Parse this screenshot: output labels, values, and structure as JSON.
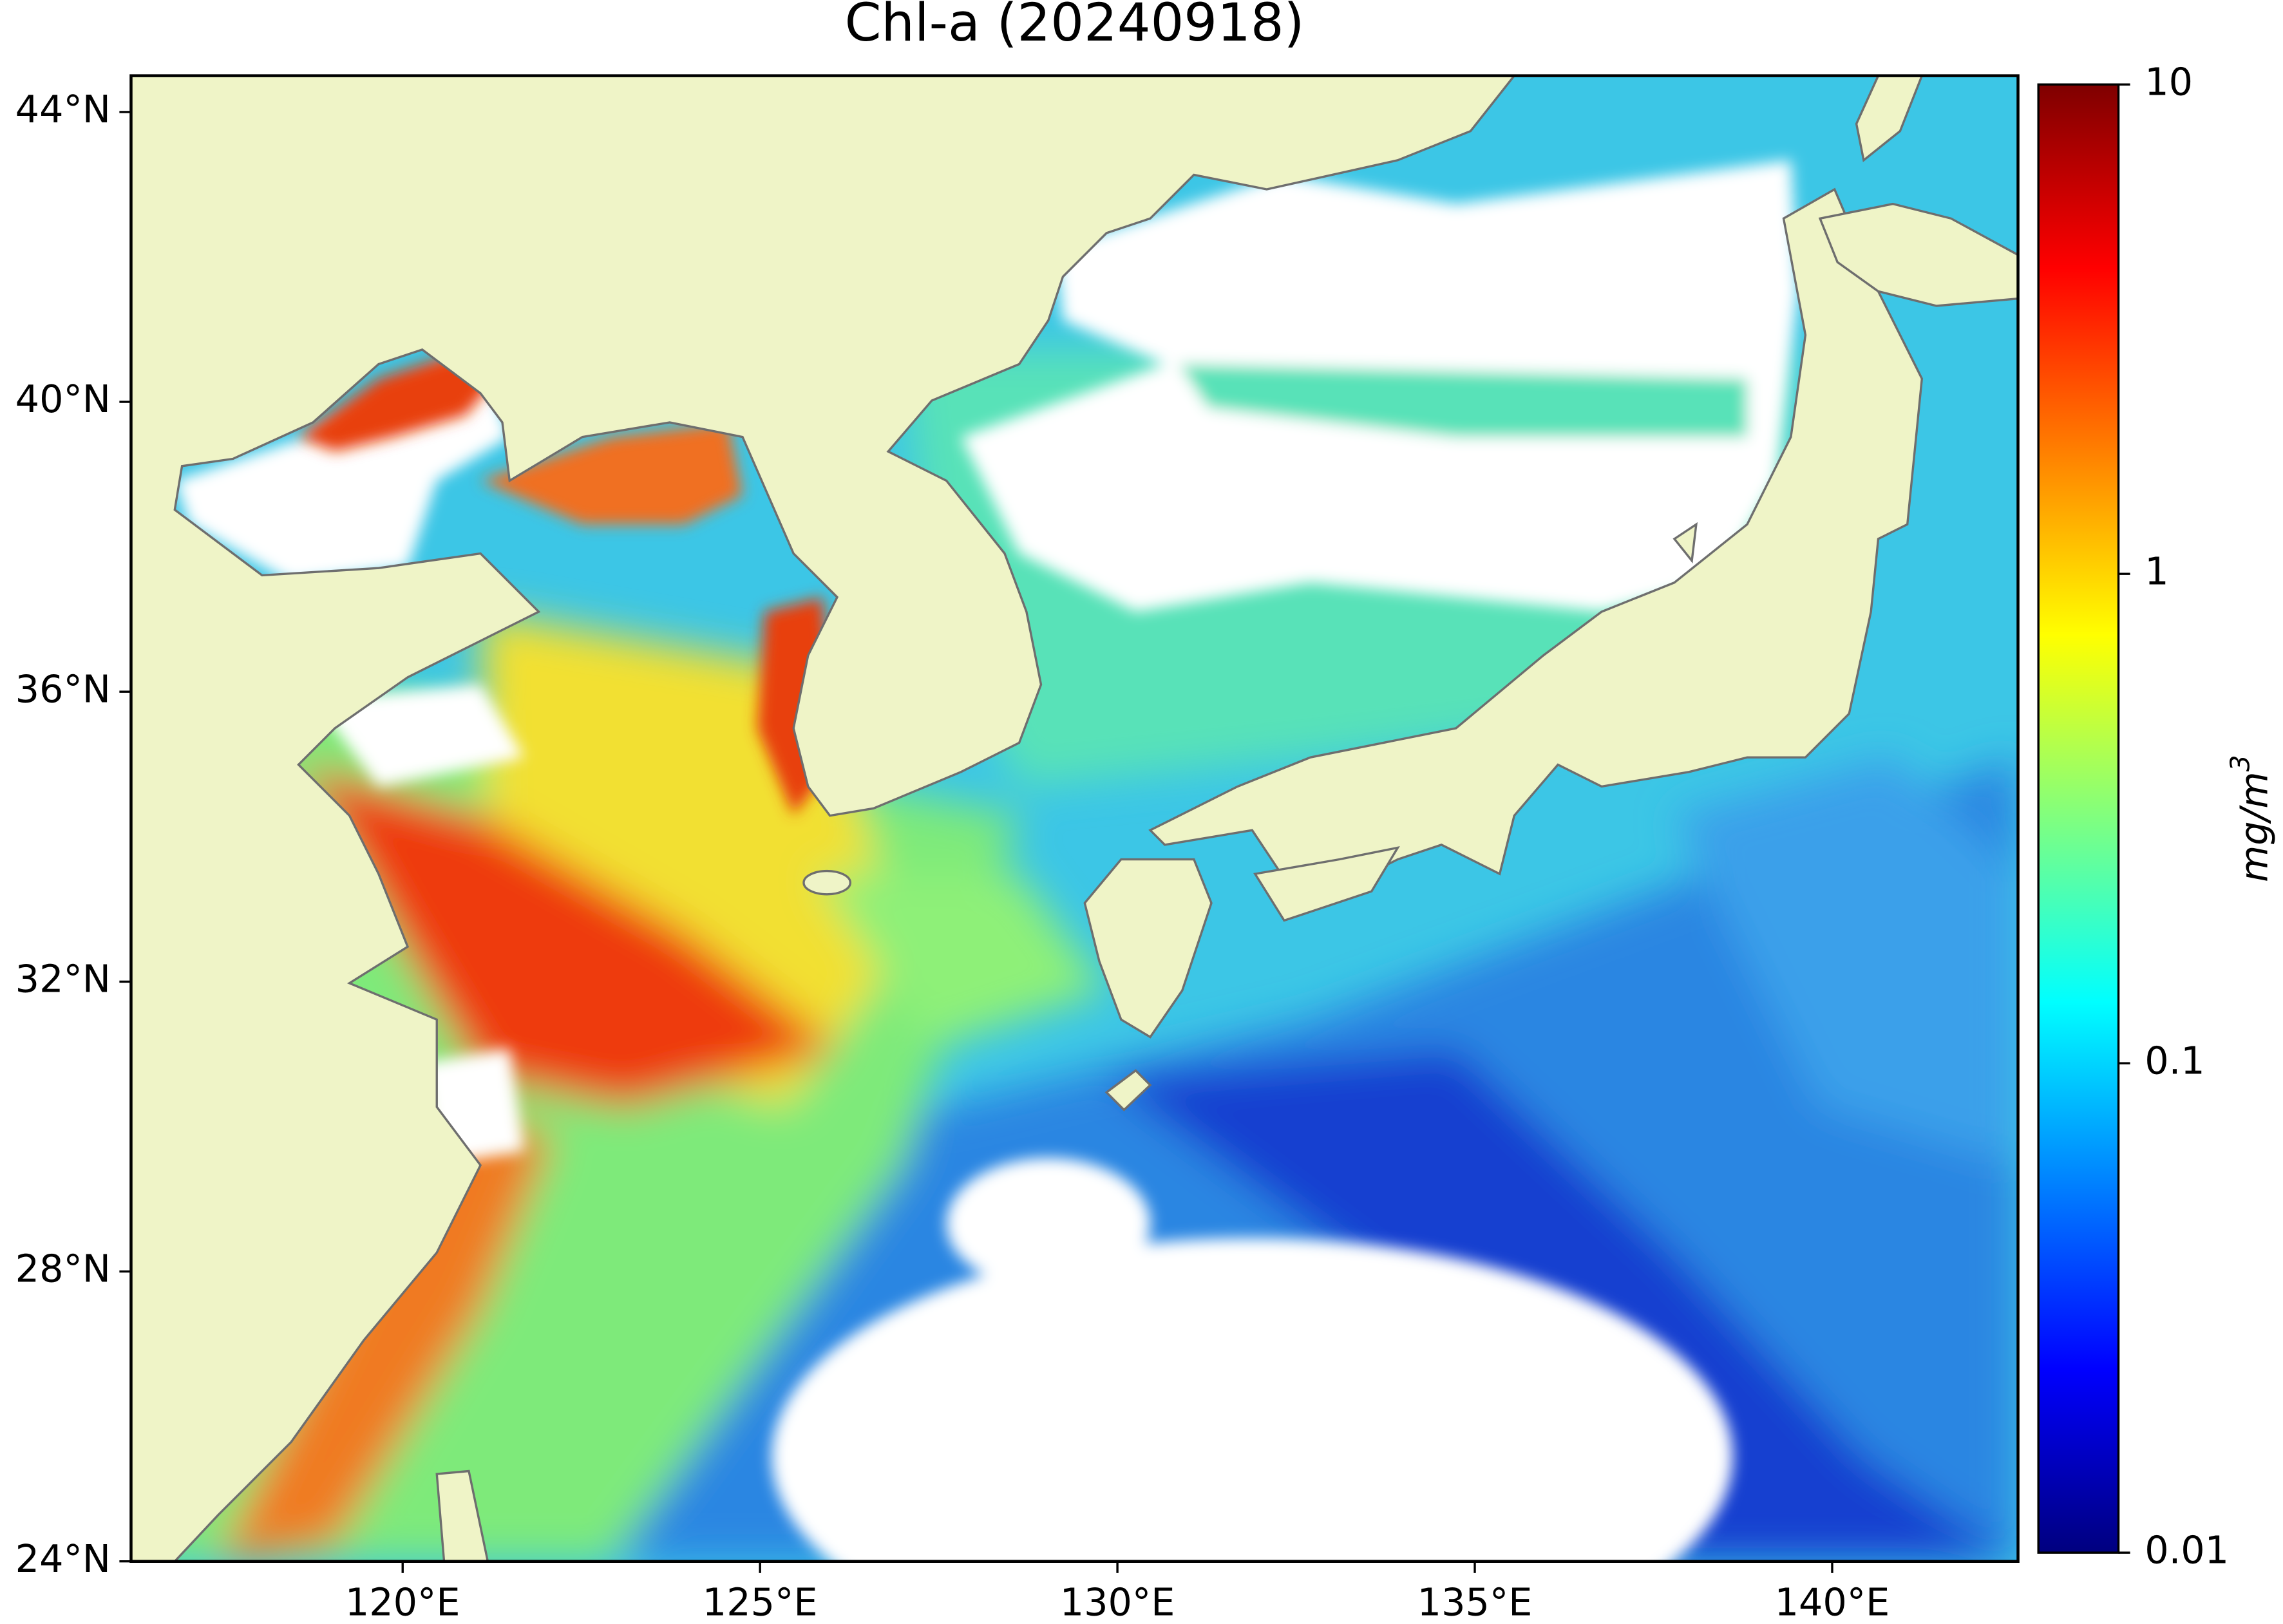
{
  "title": "Chl-a (20240918)",
  "map": {
    "xlim": [
      116.2,
      142.6
    ],
    "ylim": [
      24,
      44.5
    ],
    "xticks": [
      {
        "value": 120,
        "label": "120°E"
      },
      {
        "value": 125,
        "label": "125°E"
      },
      {
        "value": 130,
        "label": "130°E"
      },
      {
        "value": 135,
        "label": "135°E"
      },
      {
        "value": 140,
        "label": "140°E"
      }
    ],
    "yticks": [
      {
        "value": 24,
        "label": "24°N"
      },
      {
        "value": 28,
        "label": "28°N"
      },
      {
        "value": 32,
        "label": "32°N"
      },
      {
        "value": 36,
        "label": "36°N"
      },
      {
        "value": 40,
        "label": "40°N"
      },
      {
        "value": 44,
        "label": "44°N"
      }
    ]
  },
  "colorbar": {
    "scale": "log",
    "lim": [
      0.01,
      10
    ],
    "ticks": [
      0.01,
      0.1,
      1,
      10
    ],
    "label": "mg/m",
    "label_superscript": "3"
  }
}
